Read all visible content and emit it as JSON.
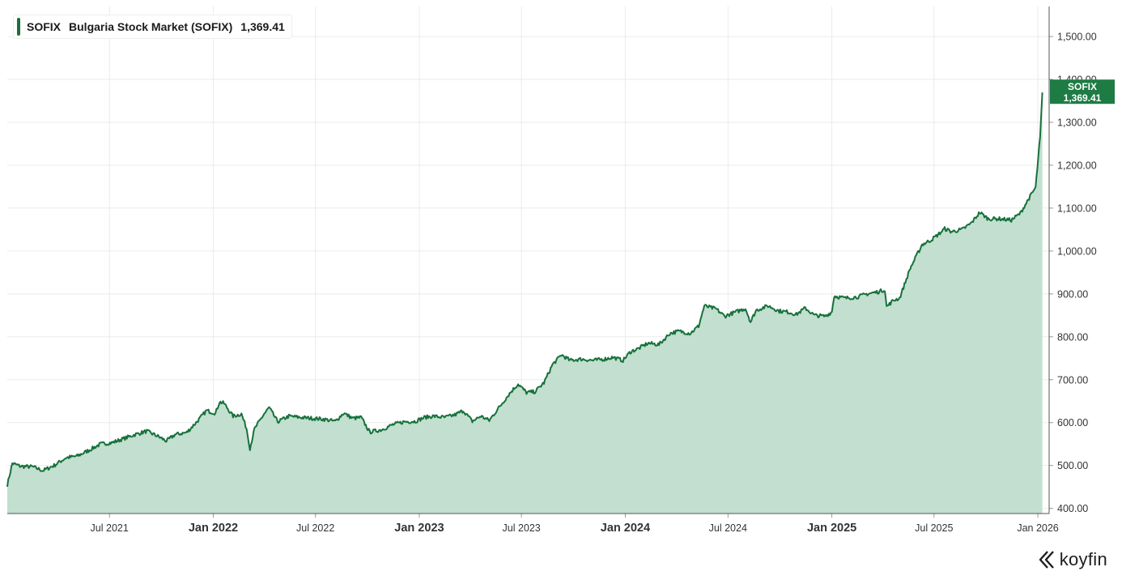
{
  "legend": {
    "ticker": "SOFIX",
    "name": "Bulgaria Stock Market (SOFIX)",
    "value": "1,369.41"
  },
  "price_tag": {
    "ticker": "SOFIX",
    "value": "1,369.41"
  },
  "brand": {
    "name": "koyfin",
    "icon": "koyfin-logo-icon"
  },
  "colors": {
    "line": "#17713c",
    "area": "#c2dfcf",
    "tag": "#1e7b44",
    "grid": "#ebebeb",
    "axis_text": "#333333"
  },
  "chart_data": {
    "type": "area",
    "title": "",
    "xlabel": "",
    "ylabel": "",
    "ylim": [
      388,
      1570
    ],
    "xlim": [
      "2021-01-01",
      "2026-01-21"
    ],
    "yticks": [
      {
        "value": 400,
        "label": "400.00"
      },
      {
        "value": 500,
        "label": "500.00"
      },
      {
        "value": 600,
        "label": "600.00"
      },
      {
        "value": 700,
        "label": "700.00"
      },
      {
        "value": 800,
        "label": "800.00"
      },
      {
        "value": 900,
        "label": "900.00"
      },
      {
        "value": 1000,
        "label": "1,000.00"
      },
      {
        "value": 1100,
        "label": "1,100.00"
      },
      {
        "value": 1200,
        "label": "1,200.00"
      },
      {
        "value": 1300,
        "label": "1,300.00"
      },
      {
        "value": 1400,
        "label": "1,400.00"
      },
      {
        "value": 1500,
        "label": "1,500.00"
      }
    ],
    "xticks": [
      {
        "date": "2021-07-01",
        "label": "Jul 2021",
        "bold": false
      },
      {
        "date": "2022-01-01",
        "label": "Jan 2022",
        "bold": true
      },
      {
        "date": "2022-07-01",
        "label": "Jul 2022",
        "bold": false
      },
      {
        "date": "2023-01-01",
        "label": "Jan 2023",
        "bold": true
      },
      {
        "date": "2023-07-01",
        "label": "Jul 2023",
        "bold": false
      },
      {
        "date": "2024-01-01",
        "label": "Jan 2024",
        "bold": true
      },
      {
        "date": "2024-07-01",
        "label": "Jul 2024",
        "bold": false
      },
      {
        "date": "2025-01-01",
        "label": "Jan 2025",
        "bold": true
      },
      {
        "date": "2025-07-01",
        "label": "Jul 2025",
        "bold": false
      },
      {
        "date": "2026-01-01",
        "label": "Jan 2026",
        "bold": false
      }
    ],
    "series": [
      {
        "name": "SOFIX",
        "last": 1369.41,
        "points": [
          [
            "2021-01-01",
            455
          ],
          [
            "2021-01-10",
            505
          ],
          [
            "2021-01-25",
            498
          ],
          [
            "2021-02-15",
            497
          ],
          [
            "2021-03-05",
            488
          ],
          [
            "2021-03-25",
            500
          ],
          [
            "2021-04-15",
            518
          ],
          [
            "2021-05-05",
            522
          ],
          [
            "2021-05-25",
            535
          ],
          [
            "2021-06-15",
            550
          ],
          [
            "2021-07-05",
            553
          ],
          [
            "2021-07-25",
            562
          ],
          [
            "2021-08-15",
            572
          ],
          [
            "2021-09-05",
            580
          ],
          [
            "2021-09-25",
            568
          ],
          [
            "2021-10-10",
            557
          ],
          [
            "2021-10-25",
            572
          ],
          [
            "2021-11-15",
            577
          ],
          [
            "2021-12-05",
            605
          ],
          [
            "2021-12-20",
            628
          ],
          [
            "2022-01-05",
            622
          ],
          [
            "2022-01-12",
            648
          ],
          [
            "2022-01-20",
            645
          ],
          [
            "2022-02-05",
            615
          ],
          [
            "2022-02-20",
            620
          ],
          [
            "2022-03-01",
            586
          ],
          [
            "2022-03-07",
            540
          ],
          [
            "2022-03-15",
            585
          ],
          [
            "2022-04-01",
            620
          ],
          [
            "2022-04-10",
            635
          ],
          [
            "2022-04-25",
            602
          ],
          [
            "2022-05-15",
            615
          ],
          [
            "2022-06-05",
            612
          ],
          [
            "2022-06-25",
            610
          ],
          [
            "2022-07-15",
            608
          ],
          [
            "2022-08-05",
            603
          ],
          [
            "2022-08-20",
            622
          ],
          [
            "2022-09-05",
            610
          ],
          [
            "2022-09-20",
            612
          ],
          [
            "2022-10-05",
            578
          ],
          [
            "2022-10-25",
            583
          ],
          [
            "2022-11-15",
            595
          ],
          [
            "2022-12-05",
            602
          ],
          [
            "2022-12-25",
            603
          ],
          [
            "2023-01-10",
            612
          ],
          [
            "2023-01-25",
            615
          ],
          [
            "2023-02-15",
            612
          ],
          [
            "2023-03-05",
            618
          ],
          [
            "2023-03-20",
            628
          ],
          [
            "2023-04-05",
            603
          ],
          [
            "2023-04-20",
            615
          ],
          [
            "2023-05-05",
            605
          ],
          [
            "2023-05-25",
            640
          ],
          [
            "2023-06-10",
            668
          ],
          [
            "2023-06-25",
            690
          ],
          [
            "2023-07-10",
            670
          ],
          [
            "2023-07-25",
            672
          ],
          [
            "2023-08-10",
            693
          ],
          [
            "2023-08-25",
            735
          ],
          [
            "2023-09-10",
            758
          ],
          [
            "2023-09-25",
            745
          ],
          [
            "2023-10-15",
            748
          ],
          [
            "2023-11-05",
            745
          ],
          [
            "2023-11-25",
            748
          ],
          [
            "2023-12-10",
            752
          ],
          [
            "2023-12-28",
            745
          ],
          [
            "2024-01-10",
            765
          ],
          [
            "2024-01-25",
            773
          ],
          [
            "2024-02-10",
            785
          ],
          [
            "2024-03-01",
            782
          ],
          [
            "2024-03-20",
            808
          ],
          [
            "2024-04-05",
            813
          ],
          [
            "2024-04-25",
            808
          ],
          [
            "2024-05-10",
            825
          ],
          [
            "2024-05-20",
            872
          ],
          [
            "2024-06-10",
            865
          ],
          [
            "2024-06-25",
            848
          ],
          [
            "2024-07-15",
            858
          ],
          [
            "2024-08-01",
            866
          ],
          [
            "2024-08-10",
            835
          ],
          [
            "2024-08-20",
            862
          ],
          [
            "2024-09-10",
            872
          ],
          [
            "2024-09-30",
            860
          ],
          [
            "2024-10-15",
            858
          ],
          [
            "2024-10-30",
            852
          ],
          [
            "2024-11-15",
            867
          ],
          [
            "2024-12-01",
            850
          ],
          [
            "2024-12-20",
            848
          ],
          [
            "2025-01-01",
            858
          ],
          [
            "2025-01-05",
            895
          ],
          [
            "2025-01-25",
            890
          ],
          [
            "2025-02-15",
            893
          ],
          [
            "2025-03-05",
            900
          ],
          [
            "2025-03-25",
            905
          ],
          [
            "2025-04-05",
            910
          ],
          [
            "2025-04-08",
            870
          ],
          [
            "2025-04-20",
            885
          ],
          [
            "2025-05-01",
            890
          ],
          [
            "2025-05-20",
            960
          ],
          [
            "2025-06-10",
            1015
          ],
          [
            "2025-06-25",
            1025
          ],
          [
            "2025-07-10",
            1040
          ],
          [
            "2025-07-20",
            1052
          ],
          [
            "2025-08-01",
            1045
          ],
          [
            "2025-08-20",
            1050
          ],
          [
            "2025-09-05",
            1065
          ],
          [
            "2025-09-20",
            1090
          ],
          [
            "2025-10-05",
            1075
          ],
          [
            "2025-10-25",
            1075
          ],
          [
            "2025-11-15",
            1072
          ],
          [
            "2025-12-01",
            1088
          ],
          [
            "2025-12-15",
            1120
          ],
          [
            "2025-12-28",
            1148
          ],
          [
            "2026-01-05",
            1265
          ],
          [
            "2026-01-09",
            1369.41
          ]
        ]
      }
    ]
  }
}
